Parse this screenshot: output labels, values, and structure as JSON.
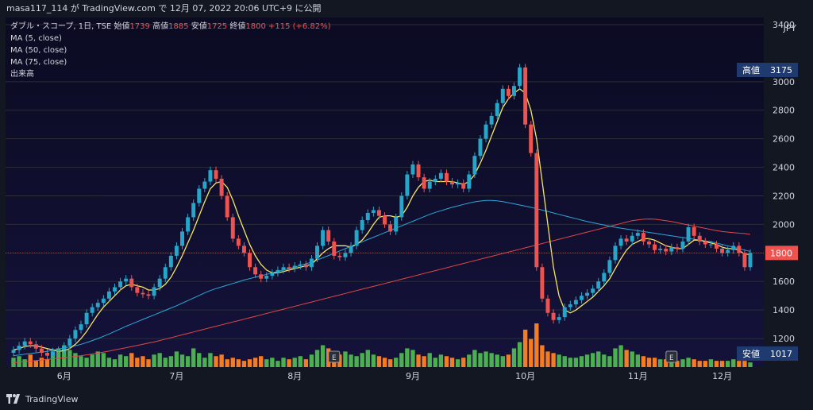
{
  "header": {
    "publish_line": "masa117_114 が TradingView.com で 12月 07, 2022 20:06 UTC+9 に公開"
  },
  "legend": {
    "title_prefix": "ダブル・スコープ, 1日, TSE",
    "open_label": "始値",
    "open_value": "1739",
    "high_label": "高値",
    "high_value": "1885",
    "low_label": "安値",
    "low_value": "1725",
    "close_label": "終値",
    "close_value": "1800",
    "change": "+115 (+6.82%)",
    "indicators": [
      "MA (5, close)",
      "MA (50, close)",
      "MA (75, close)",
      "出来高"
    ]
  },
  "axis": {
    "currency": "JPY",
    "y_ticks": [
      "3400",
      "3000",
      "2800",
      "2600",
      "2400",
      "2200",
      "2000",
      "1800",
      "1600",
      "1400",
      "1200"
    ],
    "x_ticks": [
      "6月",
      "7月",
      "8月",
      "9月",
      "10月",
      "11月",
      "12月"
    ]
  },
  "badges": {
    "high_label": "高値",
    "high_value": "3175",
    "last_value": "1800",
    "low_label": "安値",
    "low_value": "1017",
    "earnings_marker": "E"
  },
  "footer": {
    "brand": "TradingView"
  },
  "colors": {
    "background": "#131722",
    "up_candle": "#26a6c8",
    "down_candle": "#ef5350",
    "ma5": "#f5e663",
    "ma50": "#2aa8d8",
    "ma75": "#e04848",
    "volume_up": "#4caf50",
    "volume_down": "#f57c20",
    "badge_blue": "#1e3a6e",
    "badge_red": "#ef5350"
  },
  "chart_data": {
    "type": "candlestick",
    "title": "ダブル・スコープ, 1日, TSE",
    "ylabel": "JPY",
    "ylim": [
      1000,
      3450
    ],
    "x_tick_labels": [
      "6月",
      "7月",
      "8月",
      "9月",
      "10月",
      "11月",
      "12月"
    ],
    "y_ticks": [
      3400,
      3000,
      2800,
      2600,
      2400,
      2200,
      2000,
      1800,
      1600,
      1400,
      1200
    ],
    "high_marker": 3175,
    "low_marker": 1017,
    "last_price": 1800,
    "ohlc_close_series": [
      1120,
      1150,
      1180,
      1160,
      1130,
      1100,
      1080,
      1110,
      1120,
      1150,
      1200,
      1260,
      1300,
      1380,
      1420,
      1450,
      1480,
      1530,
      1560,
      1600,
      1620,
      1560,
      1520,
      1510,
      1500,
      1560,
      1620,
      1700,
      1780,
      1850,
      1950,
      2050,
      2150,
      2250,
      2300,
      2380,
      2320,
      2200,
      2050,
      1900,
      1850,
      1800,
      1700,
      1650,
      1620,
      1640,
      1660,
      1680,
      1700,
      1690,
      1710,
      1720,
      1700,
      1760,
      1850,
      1960,
      1880,
      1780,
      1770,
      1800,
      1850,
      1960,
      2030,
      2080,
      2100,
      2060,
      2000,
      1950,
      2050,
      2200,
      2350,
      2420,
      2330,
      2250,
      2300,
      2320,
      2360,
      2300,
      2280,
      2290,
      2250,
      2350,
      2480,
      2600,
      2700,
      2760,
      2850,
      2950,
      2900,
      2970,
      3100,
      2700,
      2500,
      1700,
      1480,
      1380,
      1330,
      1350,
      1420,
      1440,
      1470,
      1500,
      1520,
      1550,
      1600,
      1660,
      1750,
      1850,
      1900,
      1880,
      1920,
      1940,
      1880,
      1860,
      1820,
      1830,
      1810,
      1840,
      1830,
      1880,
      1980,
      1920,
      1880,
      1860,
      1860,
      1830,
      1800,
      1820,
      1850,
      1800,
      1700,
      1800
    ],
    "ma5": [
      1120,
      1130,
      1145,
      1150,
      1150,
      1140,
      1130,
      1120,
      1110,
      1115,
      1130,
      1160,
      1200,
      1250,
      1310,
      1370,
      1420,
      1460,
      1500,
      1540,
      1570,
      1580,
      1570,
      1560,
      1540,
      1540,
      1550,
      1580,
      1630,
      1700,
      1780,
      1870,
      1960,
      2060,
      2160,
      2250,
      2290,
      2300,
      2260,
      2170,
      2060,
      1960,
      1860,
      1780,
      1720,
      1680,
      1660,
      1660,
      1670,
      1680,
      1690,
      1700,
      1710,
      1720,
      1760,
      1800,
      1830,
      1850,
      1850,
      1850,
      1840,
      1860,
      1890,
      1940,
      2000,
      2050,
      2060,
      2060,
      2050,
      2060,
      2120,
      2200,
      2260,
      2300,
      2310,
      2300,
      2300,
      2300,
      2300,
      2290,
      2280,
      2300,
      2350,
      2430,
      2520,
      2620,
      2720,
      2820,
      2880,
      2920,
      2950,
      2920,
      2800,
      2600,
      2300,
      2000,
      1700,
      1500,
      1400,
      1380,
      1400,
      1430,
      1460,
      1490,
      1530,
      1570,
      1620,
      1690,
      1760,
      1820,
      1860,
      1880,
      1900,
      1900,
      1890,
      1870,
      1850,
      1840,
      1830,
      1830,
      1860,
      1890,
      1890,
      1880,
      1870,
      1860,
      1840,
      1830,
      1830,
      1820,
      1790,
      1790
    ],
    "ma50": [
      1080,
      1085,
      1090,
      1095,
      1100,
      1105,
      1110,
      1118,
      1126,
      1134,
      1142,
      1150,
      1160,
      1172,
      1186,
      1200,
      1216,
      1232,
      1250,
      1268,
      1286,
      1302,
      1318,
      1334,
      1350,
      1366,
      1382,
      1398,
      1414,
      1430,
      1448,
      1466,
      1484,
      1502,
      1520,
      1536,
      1550,
      1562,
      1574,
      1586,
      1598,
      1610,
      1620,
      1630,
      1640,
      1650,
      1660,
      1670,
      1680,
      1690,
      1700,
      1712,
      1724,
      1736,
      1750,
      1766,
      1782,
      1798,
      1814,
      1830,
      1846,
      1862,
      1878,
      1894,
      1910,
      1926,
      1942,
      1958,
      1974,
      1990,
      2006,
      2022,
      2038,
      2054,
      2070,
      2084,
      2096,
      2108,
      2120,
      2130,
      2140,
      2150,
      2158,
      2164,
      2168,
      2168,
      2165,
      2160,
      2152,
      2144,
      2136,
      2128,
      2120,
      2110,
      2100,
      2090,
      2080,
      2070,
      2060,
      2050,
      2040,
      2030,
      2020,
      2012,
      2004,
      1996,
      1988,
      1980,
      1974,
      1968,
      1962,
      1956,
      1950,
      1944,
      1938,
      1932,
      1926,
      1920,
      1914,
      1908,
      1902,
      1896,
      1890,
      1884,
      1878,
      1870,
      1860,
      1850,
      1840,
      1830,
      1820,
      1810
    ],
    "ma75": [
      1030,
      1034,
      1038,
      1042,
      1046,
      1050,
      1054,
      1058,
      1062,
      1066,
      1070,
      1075,
      1080,
      1086,
      1092,
      1098,
      1105,
      1112,
      1120,
      1128,
      1136,
      1144,
      1152,
      1160,
      1168,
      1176,
      1186,
      1196,
      1206,
      1216,
      1226,
      1236,
      1246,
      1256,
      1266,
      1276,
      1286,
      1296,
      1306,
      1316,
      1326,
      1336,
      1346,
      1356,
      1366,
      1376,
      1386,
      1396,
      1406,
      1416,
      1426,
      1436,
      1446,
      1456,
      1466,
      1476,
      1486,
      1496,
      1506,
      1516,
      1526,
      1536,
      1546,
      1556,
      1566,
      1576,
      1586,
      1596,
      1606,
      1616,
      1626,
      1636,
      1646,
      1656,
      1666,
      1676,
      1686,
      1696,
      1706,
      1716,
      1726,
      1736,
      1746,
      1756,
      1766,
      1776,
      1786,
      1796,
      1806,
      1816,
      1826,
      1836,
      1846,
      1856,
      1866,
      1876,
      1886,
      1896,
      1906,
      1916,
      1926,
      1936,
      1946,
      1956,
      1966,
      1976,
      1986,
      1996,
      2006,
      2016,
      2026,
      2032,
      2036,
      2038,
      2036,
      2032,
      2026,
      2020,
      2012,
      2004,
      1996,
      1988,
      1980,
      1972,
      1964,
      1956,
      1950,
      1946,
      1942,
      1938,
      1936,
      1930
    ],
    "volume": [
      30,
      35,
      25,
      40,
      20,
      30,
      25,
      50,
      60,
      70,
      55,
      45,
      35,
      30,
      40,
      50,
      45,
      30,
      25,
      40,
      35,
      45,
      30,
      35,
      25,
      40,
      45,
      30,
      35,
      50,
      40,
      35,
      60,
      45,
      30,
      45,
      35,
      40,
      25,
      30,
      25,
      20,
      25,
      30,
      35,
      25,
      30,
      20,
      30,
      25,
      30,
      35,
      25,
      40,
      55,
      70,
      60,
      45,
      40,
      50,
      40,
      35,
      45,
      55,
      40,
      35,
      30,
      25,
      30,
      45,
      60,
      55,
      40,
      35,
      45,
      30,
      40,
      35,
      30,
      25,
      30,
      40,
      55,
      45,
      50,
      45,
      40,
      35,
      40,
      60,
      80,
      120,
      90,
      140,
      70,
      50,
      45,
      40,
      35,
      30,
      30,
      35,
      40,
      45,
      50,
      40,
      35,
      60,
      70,
      55,
      50,
      40,
      35,
      30,
      30,
      25,
      25,
      20,
      20,
      25,
      30,
      25,
      20,
      20,
      25,
      20,
      20,
      20,
      25,
      20,
      20,
      15
    ],
    "earnings_markers_index": [
      57,
      117
    ]
  }
}
